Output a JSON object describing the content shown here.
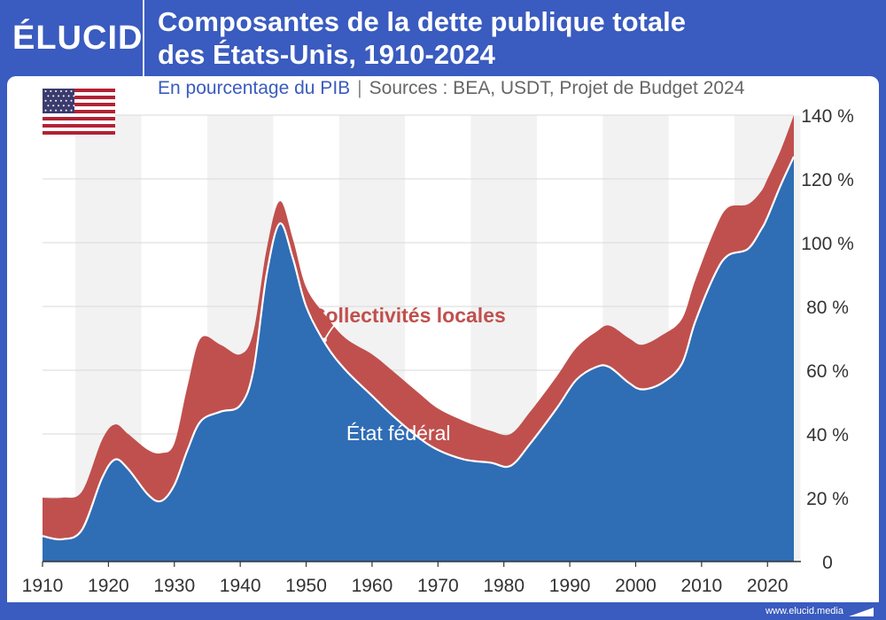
{
  "header": {
    "logo_text": "ÉLUCID",
    "title_line1": "Composantes de la dette publique totale",
    "title_line2": "des États-Unis, 1910-2024"
  },
  "subtitle": {
    "main": "En pourcentage du PIB",
    "separator": "|",
    "sources": "Sources : BEA, USDT, Projet de Budget 2024"
  },
  "footer": {
    "url": "www.elucid.media"
  },
  "colors": {
    "federal": "#2f6db5",
    "local": "#c0504d",
    "brand": "#3a5bbf",
    "band": "#f2f2f2"
  },
  "chart_data": {
    "type": "area",
    "stacked": true,
    "xlim": [
      1910,
      2024
    ],
    "ylim": [
      0,
      140
    ],
    "yticks": [
      0,
      20,
      40,
      60,
      80,
      100,
      120,
      140
    ],
    "ytick_labels": [
      "0",
      "20 %",
      "40 %",
      "60 %",
      "80 %",
      "100 %",
      "120 %",
      "140 %"
    ],
    "xticks": [
      1910,
      1920,
      1930,
      1940,
      1950,
      1960,
      1970,
      1980,
      1990,
      2000,
      2010,
      2020
    ],
    "xtick_labels": [
      "1910",
      "1920",
      "1930",
      "1940",
      "1950",
      "1960",
      "1970",
      "1980",
      "1990",
      "2000",
      "2010",
      "2020"
    ],
    "series": [
      {
        "name": "État fédéral",
        "x": [
          1910,
          1913,
          1916,
          1919,
          1921,
          1923,
          1926,
          1928,
          1930,
          1932,
          1934,
          1937,
          1940,
          1942,
          1944,
          1946,
          1948,
          1950,
          1953,
          1956,
          1960,
          1963,
          1967,
          1970,
          1974,
          1978,
          1981,
          1984,
          1988,
          1991,
          1994,
          1996,
          1999,
          2001,
          2004,
          2007,
          2009,
          2012,
          2014,
          2017,
          2019,
          2020,
          2022,
          2024
        ],
        "values": [
          8,
          7,
          10,
          26,
          32,
          29,
          21,
          19,
          24,
          35,
          44,
          47,
          49,
          60,
          90,
          106,
          95,
          80,
          68,
          60,
          52,
          46,
          39,
          35,
          32,
          31,
          30,
          37,
          48,
          57,
          61,
          61,
          56,
          54,
          56,
          62,
          75,
          90,
          96,
          98,
          104,
          108,
          118,
          127
        ]
      },
      {
        "name": "Collectivités locales",
        "x": [
          1910,
          1913,
          1916,
          1919,
          1921,
          1923,
          1926,
          1928,
          1930,
          1932,
          1934,
          1937,
          1940,
          1942,
          1944,
          1946,
          1948,
          1950,
          1953,
          1956,
          1960,
          1963,
          1967,
          1970,
          1974,
          1978,
          1981,
          1984,
          1988,
          1991,
          1994,
          1996,
          1999,
          2001,
          2004,
          2007,
          2009,
          2012,
          2014,
          2017,
          2019,
          2020,
          2022,
          2024
        ],
        "values": [
          12,
          13,
          12,
          12,
          11,
          11,
          14,
          15,
          13,
          20,
          26,
          21,
          16,
          12,
          8,
          7,
          6,
          6,
          9,
          10,
          13,
          14,
          14,
          13,
          12,
          10,
          10,
          10,
          10,
          10,
          11,
          13,
          14,
          14,
          15,
          14,
          13,
          14,
          15,
          14,
          12,
          12,
          11,
          13
        ]
      }
    ],
    "annotations": [
      {
        "text": "Collectivités locales",
        "x": 1965.5,
        "y": 75,
        "color": "#c0504d"
      },
      {
        "text": "État fédéral",
        "x": 1964,
        "y": 38,
        "color": "#ffffff"
      }
    ],
    "grid": true,
    "legend": "none"
  }
}
